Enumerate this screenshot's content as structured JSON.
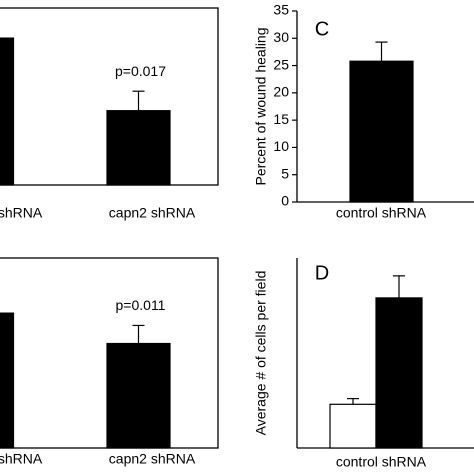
{
  "chart_data": [
    {
      "type": "bar",
      "categories": [
        "shRNA",
        "capn2 shRNA"
      ],
      "series": [
        {
          "color": "#000000",
          "values": [
            0.83,
            0.42
          ],
          "errors": [
            null,
            0.11
          ]
        }
      ],
      "annotation": "p=0.017",
      "ylim": [
        0,
        1
      ]
    },
    {
      "type": "bar",
      "panel_label": "C",
      "ylabel": "Percent of wound healing",
      "categories": [
        "control shRNA"
      ],
      "series": [
        {
          "color": "#000000",
          "values": [
            25.8
          ],
          "errors": [
            3.5
          ]
        }
      ],
      "ylim": [
        0,
        35
      ],
      "yticks": [
        0,
        5,
        10,
        15,
        20,
        25,
        30,
        35
      ]
    },
    {
      "type": "bar",
      "categories": [
        "shRNA",
        "capn2 shRNA"
      ],
      "series": [
        {
          "color": "#000000",
          "values": [
            0.71,
            0.55
          ],
          "errors": [
            null,
            0.095
          ]
        }
      ],
      "annotation": "p=0.011",
      "ylim": [
        0,
        1
      ]
    },
    {
      "type": "bar",
      "panel_label": "D",
      "ylabel": "Average # of cells per field",
      "categories": [
        "control shRNA"
      ],
      "series": [
        {
          "color": "#ffffff",
          "values": [
            0.23
          ],
          "errors": [
            0.03
          ]
        },
        {
          "color": "#000000",
          "values": [
            0.79
          ],
          "errors": [
            0.116
          ]
        }
      ],
      "ylim": [
        0,
        1
      ]
    }
  ]
}
